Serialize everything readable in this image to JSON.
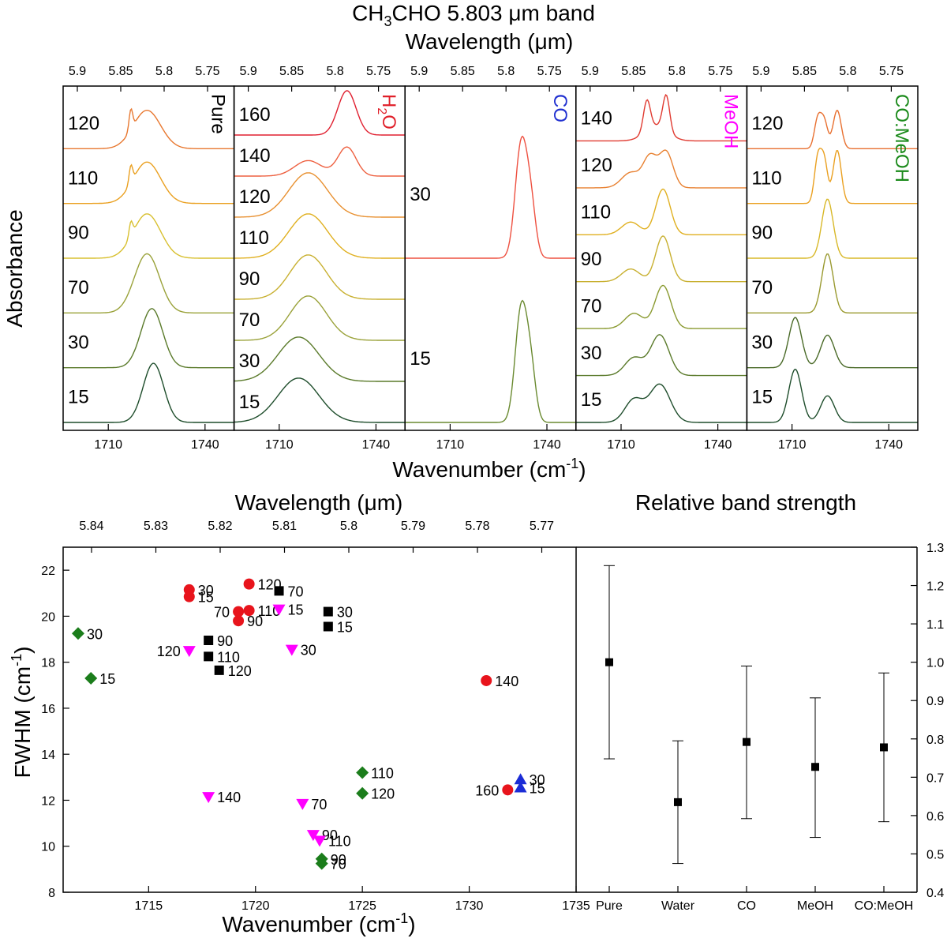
{
  "figure": {
    "title_main": "CH",
    "title_sub": "3",
    "title_rest": "CHO 5.803 μm band",
    "top_wavelength_label": "Wavelength (μm)",
    "top_ylabel": "Absorbance",
    "top_xlabel_main": "Wavenumber (cm",
    "top_xlabel_sup": "-1",
    "top_xlabel_end": ")",
    "bottom_wavelength_label": "Wavelength (μm)",
    "bottom_right_title": "Relative band strength",
    "bottom_xlabel_main": "Wavenumber (cm",
    "bottom_xlabel_sup": "-1",
    "bottom_xlabel_end": ")",
    "bottom_ylabel_main": "FWHM (cm",
    "bottom_ylabel_sup": "-1",
    "bottom_ylabel_end": ")"
  },
  "chart_data": [
    {
      "type": "line",
      "panel": "Pure",
      "label": "Pure",
      "label_color": "#000000",
      "x_range": [
        1696,
        1749
      ],
      "x_ticks": [
        1710,
        1740
      ],
      "wavelength_ticks": [
        "5.9",
        "5.85",
        "5.8",
        "5.75"
      ],
      "series": [
        {
          "name": "15",
          "color": "#1e4d2b",
          "peaks": [
            [
              1724,
              4.5,
              1
            ]
          ],
          "broad": 1.9,
          "shoulder": 0.0
        },
        {
          "name": "30",
          "color": "#5a7a2a",
          "peaks": [
            [
              1723.5,
              4.8,
              1
            ]
          ],
          "broad": 1.8,
          "shoulder": 0.0
        },
        {
          "name": "70",
          "color": "#9aa23a",
          "peaks": [
            [
              1722,
              5.5,
              1
            ]
          ],
          "broad": 1.6,
          "shoulder": 0.0
        },
        {
          "name": "90",
          "color": "#d8c030",
          "peaks": [
            [
              1717,
              0.8,
              0.25
            ],
            [
              1722,
              6,
              0.75
            ]
          ],
          "broad": 1.0,
          "shoulder": 0.0
        },
        {
          "name": "110",
          "color": "#eaa020",
          "peaks": [
            [
              1717,
              0.8,
              0.3
            ],
            [
              1722,
              6,
              0.7
            ]
          ],
          "broad": 1.0,
          "shoulder": 0.0
        },
        {
          "name": "120",
          "color": "#e87830",
          "peaks": [
            [
              1717,
              0.8,
              0.35
            ],
            [
              1722,
              6,
              0.65
            ]
          ],
          "broad": 1.0,
          "shoulder": 0.0
        }
      ]
    },
    {
      "type": "line",
      "panel": "H2O",
      "label": "H",
      "label_sub": "2",
      "label_end": "O",
      "label_color": "#e0202a",
      "x_range": [
        1696,
        1749
      ],
      "x_ticks": [
        1710,
        1740
      ],
      "wavelength_ticks": [
        "5.9",
        "5.85",
        "5.8",
        "5.75"
      ],
      "series": [
        {
          "name": "15",
          "color": "#1e4d2b",
          "peaks": [
            [
              1716,
              9,
              1
            ]
          ],
          "broad": 1.0,
          "shoulder": 0.0
        },
        {
          "name": "30",
          "color": "#5a7a2a",
          "peaks": [
            [
              1716,
              9,
              1
            ]
          ],
          "broad": 1.0,
          "shoulder": 0.0
        },
        {
          "name": "70",
          "color": "#9aa23a",
          "peaks": [
            [
              1719,
              8,
              1
            ]
          ],
          "broad": 1.0,
          "shoulder": 0.0
        },
        {
          "name": "90",
          "color": "#c8b030",
          "peaks": [
            [
              1719,
              8,
              1
            ]
          ],
          "broad": 1.0,
          "shoulder": 0.0
        },
        {
          "name": "110",
          "color": "#e0b020",
          "peaks": [
            [
              1719,
              8.5,
              1
            ]
          ],
          "broad": 1.0,
          "shoulder": 0.0
        },
        {
          "name": "120",
          "color": "#e89030",
          "peaks": [
            [
              1719,
              8.5,
              1
            ]
          ],
          "broad": 1.0,
          "shoulder": 0.0
        },
        {
          "name": "140",
          "color": "#ee6040",
          "peaks": [
            [
              1719,
              6,
              0.35
            ],
            [
              1731,
              4,
              0.65
            ]
          ],
          "broad": 1.0,
          "shoulder": 0.0
        },
        {
          "name": "160",
          "color": "#e02030",
          "peaks": [
            [
              1731,
              4,
              1
            ]
          ],
          "broad": 1.0,
          "shoulder": 0.0
        }
      ]
    },
    {
      "type": "line",
      "panel": "CO",
      "label": "CO",
      "label_color": "#1f2fd0",
      "x_range": [
        1696,
        1749
      ],
      "x_ticks": [
        1710,
        1740
      ],
      "wavelength_ticks": [
        "5.9",
        "5.85",
        "5.8",
        "5.75"
      ],
      "series": [
        {
          "name": "15",
          "color": "#6a8a30",
          "peaks": [
            [
              1732,
              2.6,
              0.8
            ],
            [
              1735,
              2.2,
              0.35
            ]
          ],
          "broad": 1.0,
          "shoulder": 0.0
        },
        {
          "name": "30",
          "color": "#ee5040",
          "peaks": [
            [
              1732,
              2.6,
              0.8
            ],
            [
              1735,
              2.2,
              0.35
            ]
          ],
          "broad": 1.0,
          "shoulder": 0.0
        }
      ]
    },
    {
      "type": "line",
      "panel": "MeOH",
      "label": "MeOH",
      "label_color": "#ff00ff",
      "x_range": [
        1696,
        1749
      ],
      "x_ticks": [
        1710,
        1740
      ],
      "wavelength_ticks": [
        "5.9",
        "5.85",
        "5.8",
        "5.75"
      ],
      "series": [
        {
          "name": "15",
          "color": "#1e4d2b",
          "peaks": [
            [
              1714,
              4,
              0.45
            ],
            [
              1722,
              4.5,
              0.75
            ]
          ],
          "broad": 1.0,
          "shoulder": 0.0
        },
        {
          "name": "30",
          "color": "#5a7a2a",
          "peaks": [
            [
              1714,
              4,
              0.35
            ],
            [
              1722,
              4,
              0.8
            ]
          ],
          "broad": 1.0,
          "shoulder": 0.0
        },
        {
          "name": "70",
          "color": "#8a9a30",
          "peaks": [
            [
              1714,
              4,
              0.3
            ],
            [
              1723,
              3.5,
              0.85
            ]
          ],
          "broad": 1.0,
          "shoulder": 0.0
        },
        {
          "name": "90",
          "color": "#c8b030",
          "peaks": [
            [
              1713,
              4,
              0.25
            ],
            [
              1723,
              3.2,
              0.9
            ]
          ],
          "broad": 1.0,
          "shoulder": 0.0
        },
        {
          "name": "110",
          "color": "#e0b020",
          "peaks": [
            [
              1713,
              4,
              0.25
            ],
            [
              1723,
              3.2,
              0.9
            ]
          ],
          "broad": 1.0,
          "shoulder": 0.0
        },
        {
          "name": "120",
          "color": "#e88030",
          "peaks": [
            [
              1713,
              4,
              0.3
            ],
            [
              1719,
              3,
              0.6
            ],
            [
              1724,
              3,
              0.7
            ]
          ],
          "broad": 1.0,
          "shoulder": 0.0
        },
        {
          "name": "140",
          "color": "#e03a30",
          "peaks": [
            [
              1718,
              1.5,
              0.6
            ],
            [
              1724,
              1.5,
              0.7
            ],
            [
              1721,
              5,
              0.3
            ]
          ],
          "broad": 1.0,
          "shoulder": 0.0
        }
      ]
    },
    {
      "type": "line",
      "panel": "CO:MeOH",
      "label": "CO:MeOH",
      "label_color": "#1a8a1a",
      "x_range": [
        1696,
        1749
      ],
      "x_ticks": [
        1710,
        1740
      ],
      "wavelength_ticks": [
        "5.9",
        "5.85",
        "5.8",
        "5.75"
      ],
      "series": [
        {
          "name": "15",
          "color": "#1e4d2b",
          "peaks": [
            [
              1711,
              2.8,
              0.9
            ],
            [
              1721,
              3,
              0.45
            ]
          ],
          "broad": 1.0,
          "shoulder": 0.0
        },
        {
          "name": "30",
          "color": "#4a6a28",
          "peaks": [
            [
              1711,
              2.8,
              0.85
            ],
            [
              1721,
              3,
              0.55
            ]
          ],
          "broad": 1.0,
          "shoulder": 0.0
        },
        {
          "name": "70",
          "color": "#9a9a30",
          "peaks": [
            [
              1721,
              2.5,
              1
            ]
          ],
          "broad": 1.0,
          "shoulder": 0.0
        },
        {
          "name": "90",
          "color": "#d8b828",
          "peaks": [
            [
              1721,
              2.5,
              1
            ]
          ],
          "broad": 1.0,
          "shoulder": 0.0
        },
        {
          "name": "110",
          "color": "#eaa020",
          "peaks": [
            [
              1718,
              1.5,
              0.75
            ],
            [
              1720,
              1.5,
              0.7
            ],
            [
              1724,
              1.8,
              0.9
            ]
          ],
          "broad": 1.0,
          "shoulder": 0.0
        },
        {
          "name": "120",
          "color": "#e87030",
          "peaks": [
            [
              1718,
              1.5,
              0.5
            ],
            [
              1720,
              1.5,
              0.45
            ],
            [
              1724,
              1.8,
              0.65
            ]
          ],
          "broad": 1.0,
          "shoulder": 0.0
        }
      ]
    },
    {
      "type": "scatter",
      "panel": "FWHM",
      "xlim": [
        1711,
        1735
      ],
      "ylim": [
        8,
        23
      ],
      "x_ticks": [
        1715,
        1720,
        1725,
        1730,
        1735
      ],
      "y_ticks": [
        8,
        10,
        12,
        14,
        16,
        18,
        20,
        22
      ],
      "wavelength_ticks": [
        "5.84",
        "5.83",
        "5.82",
        "5.81",
        "5.8",
        "5.79",
        "5.78",
        "5.77"
      ],
      "series": [
        {
          "name": "Pure",
          "marker": "square",
          "color": "#000000",
          "points": [
            {
              "x": 1721.1,
              "y": 21.1,
              "label": "70"
            },
            {
              "x": 1723.4,
              "y": 20.2,
              "label": "30"
            },
            {
              "x": 1723.4,
              "y": 19.55,
              "label": "15"
            },
            {
              "x": 1717.8,
              "y": 18.95,
              "label": "90"
            },
            {
              "x": 1717.8,
              "y": 18.25,
              "label": "110"
            },
            {
              "x": 1718.3,
              "y": 17.65,
              "label": "120"
            }
          ]
        },
        {
          "name": "H2O",
          "marker": "circle",
          "color": "#e8141c",
          "points": [
            {
              "x": 1719.7,
              "y": 21.4,
              "label": "120"
            },
            {
              "x": 1716.9,
              "y": 21.15,
              "label": "30"
            },
            {
              "x": 1716.9,
              "y": 20.85,
              "label": "15"
            },
            {
              "x": 1719.2,
              "y": 20.2,
              "label": "70"
            },
            {
              "x": 1719.7,
              "y": 20.25,
              "label": "110"
            },
            {
              "x": 1719.2,
              "y": 19.8,
              "label": "90"
            },
            {
              "x": 1730.8,
              "y": 17.2,
              "label": "140"
            },
            {
              "x": 1731.8,
              "y": 12.45,
              "label": "160"
            }
          ]
        },
        {
          "name": "CO",
          "marker": "triangle-up",
          "color": "#1b2cd6",
          "points": [
            {
              "x": 1732.4,
              "y": 12.9,
              "label": "30"
            },
            {
              "x": 1732.4,
              "y": 12.55,
              "label": "15"
            }
          ]
        },
        {
          "name": "MeOH",
          "marker": "triangle-down",
          "color": "#ff00ff",
          "points": [
            {
              "x": 1721.1,
              "y": 20.3,
              "label": "15"
            },
            {
              "x": 1716.9,
              "y": 18.5,
              "label": "120"
            },
            {
              "x": 1721.7,
              "y": 18.55,
              "label": "30"
            },
            {
              "x": 1717.8,
              "y": 12.15,
              "label": "140"
            },
            {
              "x": 1722.2,
              "y": 11.85,
              "label": "70"
            },
            {
              "x": 1722.7,
              "y": 10.5,
              "label": "90"
            },
            {
              "x": 1723.0,
              "y": 10.25,
              "label": "110"
            }
          ]
        },
        {
          "name": "CO:MeOH",
          "marker": "diamond",
          "color": "#1b7d1b",
          "points": [
            {
              "x": 1711.7,
              "y": 19.25,
              "label": "30"
            },
            {
              "x": 1712.3,
              "y": 17.3,
              "label": "15"
            },
            {
              "x": 1725.0,
              "y": 13.2,
              "label": "110"
            },
            {
              "x": 1725.0,
              "y": 12.3,
              "label": "120"
            },
            {
              "x": 1723.1,
              "y": 9.45,
              "label": "90"
            },
            {
              "x": 1723.1,
              "y": 9.25,
              "label": "70"
            }
          ]
        }
      ]
    },
    {
      "type": "scatter",
      "panel": "Relative band strength",
      "categories": [
        "Pure",
        "Water",
        "CO",
        "MeOH",
        "CO:MeOH"
      ],
      "ylim": [
        0.4,
        1.3
      ],
      "y_ticks": [
        "0.4",
        "0.5",
        "0.6",
        "0.7",
        "0.8",
        "0.9",
        "1.0",
        "1.1",
        "1.2",
        "1.3"
      ],
      "values": [
        1.0,
        0.635,
        0.792,
        0.727,
        0.778
      ],
      "err_low": [
        0.748,
        0.475,
        0.592,
        0.543,
        0.584
      ],
      "err_high": [
        1.252,
        0.795,
        0.99,
        0.907,
        0.972
      ]
    }
  ]
}
